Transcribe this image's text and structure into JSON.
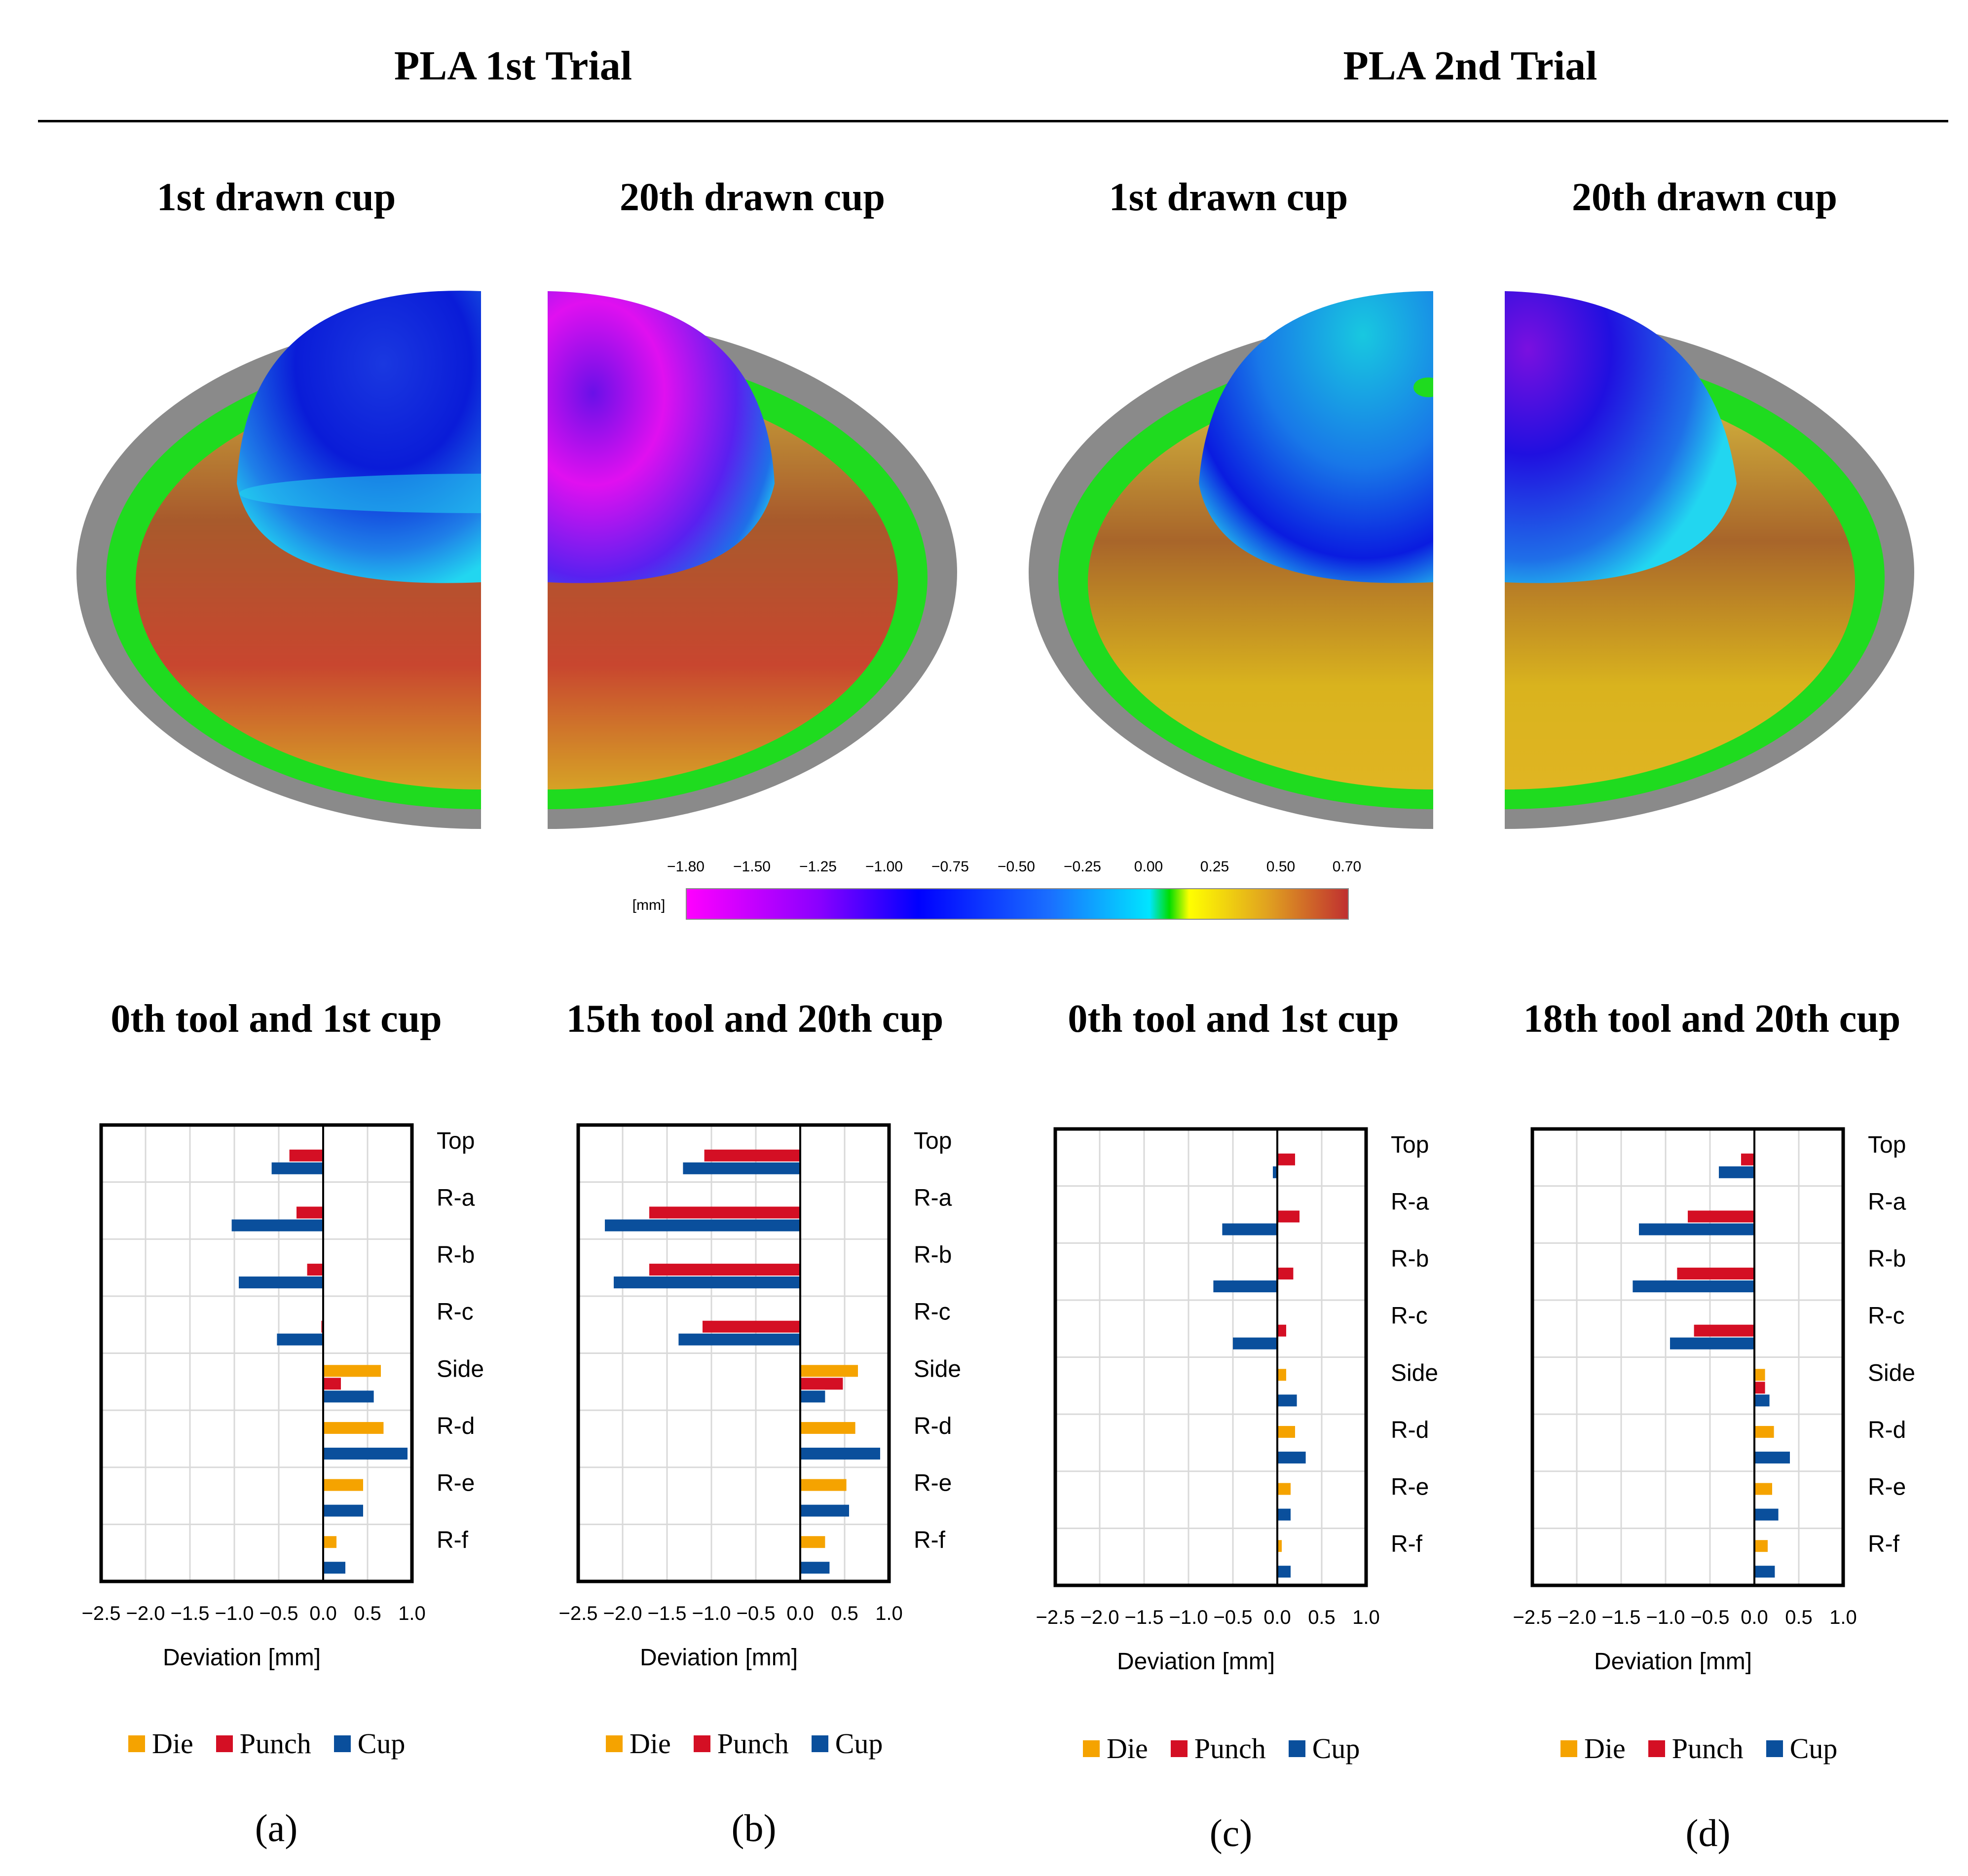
{
  "trials": [
    {
      "title": "PLA 1st Trial"
    },
    {
      "title": "PLA 2nd Trial"
    }
  ],
  "cup_titles": [
    "1st drawn cup",
    "20th drawn cup",
    "1st drawn cup",
    "20th drawn cup"
  ],
  "color_scale": {
    "unit": "[mm]",
    "ticks": [
      "−1.80",
      "−1.50",
      "−1.25",
      "−1.00",
      "−0.75",
      "−0.50",
      "−0.25",
      "0.00",
      "0.25",
      "0.50",
      "0.70"
    ],
    "colors": {
      "min": "#ff00ff",
      "violet": "#8a00ff",
      "blue": "#0000ff",
      "cyan": "#00e5ff",
      "green": "#00dd00",
      "yellow": "#ffff00",
      "orange": "#e0a020",
      "max": "#c03030"
    }
  },
  "colors": {
    "die": "#f5a300",
    "punch": "#d40f24",
    "cup": "#0a4f9c",
    "gray": "#8a8a8a",
    "green": "#1fdb1f"
  },
  "legend": {
    "die": "Die",
    "punch": "Punch",
    "cup": "Cup"
  },
  "chart_data": [
    {
      "type": "bar",
      "orientation": "horizontal",
      "title": "0th tool and 1st cup",
      "panel": "(a)",
      "categories": [
        "Top",
        "R-a",
        "R-b",
        "R-c",
        "Side",
        "R-d",
        "R-e",
        "R-f"
      ],
      "series": [
        {
          "name": "Die",
          "values": [
            0,
            0,
            0,
            0,
            0.65,
            0.68,
            0.45,
            0.15
          ]
        },
        {
          "name": "Punch",
          "values": [
            -0.38,
            -0.3,
            -0.18,
            -0.02,
            0.2,
            0,
            0,
            0
          ]
        },
        {
          "name": "Cup",
          "values": [
            -0.58,
            -1.03,
            -0.95,
            -0.52,
            0.57,
            0.95,
            0.45,
            0.25
          ]
        }
      ],
      "xlabel": "Deviation [mm]",
      "xlim": [
        -2.5,
        1.0
      ],
      "xticks": [
        "−2.5",
        "−2.0",
        "−1.5",
        "−1.0",
        "−0.5",
        "0.0",
        "0.5",
        "1.0"
      ]
    },
    {
      "type": "bar",
      "orientation": "horizontal",
      "title": "15th tool and 20th cup",
      "panel": "(b)",
      "categories": [
        "Top",
        "R-a",
        "R-b",
        "R-c",
        "Side",
        "R-d",
        "R-e",
        "R-f"
      ],
      "series": [
        {
          "name": "Die",
          "values": [
            0,
            0,
            0,
            0,
            0.65,
            0.62,
            0.52,
            0.28
          ]
        },
        {
          "name": "Punch",
          "values": [
            -1.08,
            -1.7,
            -1.7,
            -1.1,
            0.48,
            0,
            0,
            0
          ]
        },
        {
          "name": "Cup",
          "values": [
            -1.32,
            -2.2,
            -2.1,
            -1.37,
            0.28,
            0.9,
            0.55,
            0.33
          ]
        }
      ],
      "xlabel": "Deviation [mm]",
      "xlim": [
        -2.5,
        1.0
      ],
      "xticks": [
        "−2.5",
        "−2.0",
        "−1.5",
        "−1.0",
        "−0.5",
        "0.0",
        "0.5",
        "1.0"
      ]
    },
    {
      "type": "bar",
      "orientation": "horizontal",
      "title": "0th tool and 1st cup",
      "panel": "(c)",
      "categories": [
        "Top",
        "R-a",
        "R-b",
        "R-c",
        "Side",
        "R-d",
        "R-e",
        "R-f"
      ],
      "series": [
        {
          "name": "Die",
          "values": [
            0,
            0,
            0,
            0,
            0.1,
            0.2,
            0.15,
            0.05
          ]
        },
        {
          "name": "Punch",
          "values": [
            0.2,
            0.25,
            0.18,
            0.1,
            0,
            0,
            0,
            0
          ]
        },
        {
          "name": "Cup",
          "values": [
            -0.05,
            -0.62,
            -0.72,
            -0.5,
            0.22,
            0.32,
            0.15,
            0.15
          ]
        }
      ],
      "xlabel": "Deviation [mm]",
      "xlim": [
        -2.5,
        1.0
      ],
      "xticks": [
        "−2.5",
        "−2.0",
        "−1.5",
        "−1.0",
        "−0.5",
        "0.0",
        "0.5",
        "1.0"
      ]
    },
    {
      "type": "bar",
      "orientation": "horizontal",
      "title": "18th tool and 20th cup",
      "panel": "(d)",
      "categories": [
        "Top",
        "R-a",
        "R-b",
        "R-c",
        "Side",
        "R-d",
        "R-e",
        "R-f"
      ],
      "series": [
        {
          "name": "Die",
          "values": [
            0,
            0,
            0,
            0,
            0.12,
            0.22,
            0.2,
            0.15
          ]
        },
        {
          "name": "Punch",
          "values": [
            -0.15,
            -0.75,
            -0.87,
            -0.68,
            0.12,
            0,
            0,
            0
          ]
        },
        {
          "name": "Cup",
          "values": [
            -0.4,
            -1.3,
            -1.37,
            -0.95,
            0.17,
            0.4,
            0.27,
            0.23
          ]
        }
      ],
      "xlabel": "Deviation [mm]",
      "xlim": [
        -2.5,
        1.0
      ],
      "xticks": [
        "−2.5",
        "−2.0",
        "−1.5",
        "−1.0",
        "−0.5",
        "0.0",
        "0.5",
        "1.0"
      ]
    }
  ]
}
